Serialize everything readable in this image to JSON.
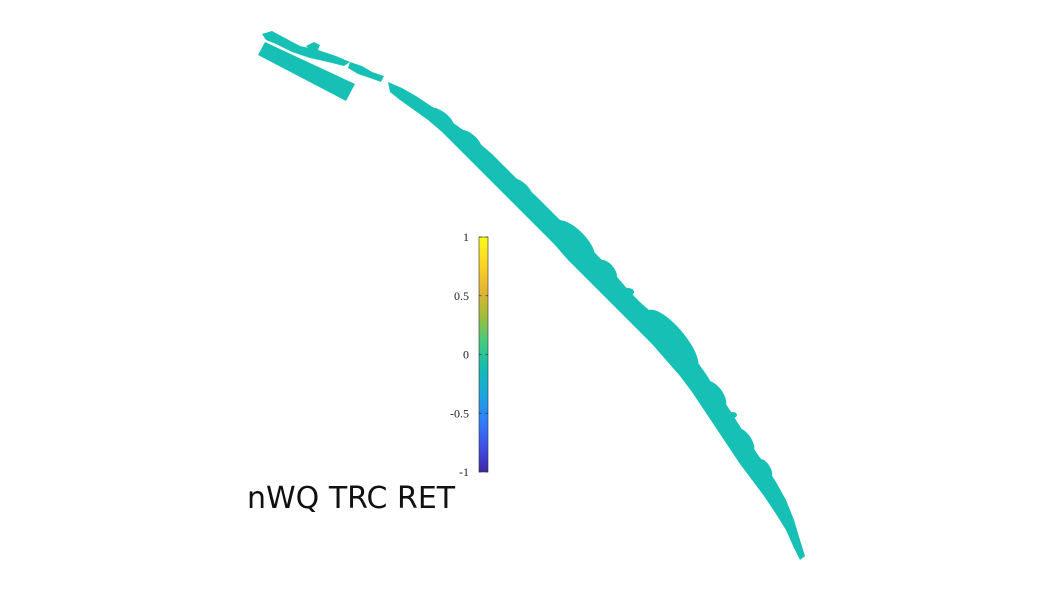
{
  "panel": {
    "label": "nWQ TRC RET"
  },
  "colorbar": {
    "min": -1,
    "max": 1,
    "ticks": [
      {
        "value": 1,
        "label": "1"
      },
      {
        "value": 0.5,
        "label": "0.5"
      },
      {
        "value": 0,
        "label": "0"
      },
      {
        "value": -0.5,
        "label": "-0.5"
      },
      {
        "value": -1,
        "label": "-1"
      }
    ],
    "colormap": [
      "#3e26a8",
      "#4150ea",
      "#2f80fa",
      "#1aa6db",
      "#13bdb0",
      "#45cb7f",
      "#a3bd3a",
      "#e6b52e",
      "#fbd626",
      "#f9fb15"
    ]
  },
  "map": {
    "field_value": 0,
    "field_color": "#17c0b5"
  }
}
